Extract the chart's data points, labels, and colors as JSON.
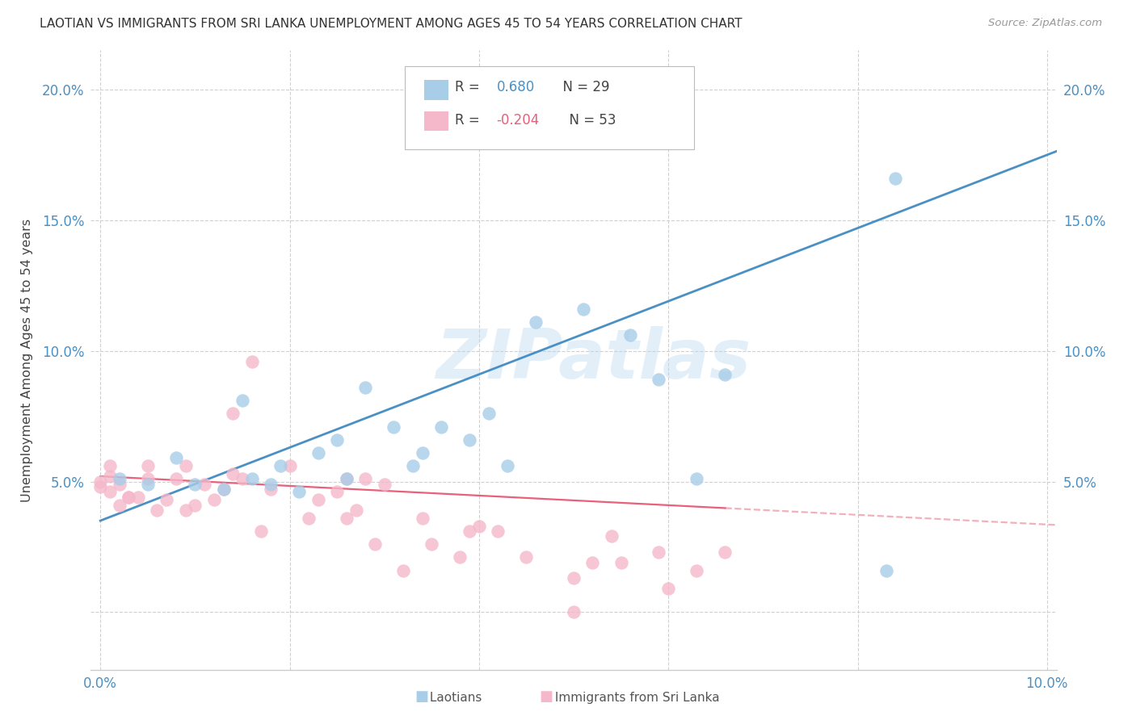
{
  "title": "LAOTIAN VS IMMIGRANTS FROM SRI LANKA UNEMPLOYMENT AMONG AGES 45 TO 54 YEARS CORRELATION CHART",
  "source": "Source: ZipAtlas.com",
  "ylabel": "Unemployment Among Ages 45 to 54 years",
  "xlim": [
    -0.001,
    0.101
  ],
  "ylim": [
    -0.022,
    0.215
  ],
  "blue_color": "#a8cde8",
  "pink_color": "#f5b8cb",
  "blue_line_color": "#4a90c4",
  "pink_line_color": "#e8607a",
  "watermark": "ZIPatlas",
  "legend_r_blue": "0.680",
  "legend_n_blue": "29",
  "legend_r_pink": "-0.204",
  "legend_n_pink": "53",
  "laotian_x": [
    0.002,
    0.005,
    0.008,
    0.01,
    0.013,
    0.015,
    0.016,
    0.018,
    0.019,
    0.021,
    0.023,
    0.025,
    0.026,
    0.028,
    0.031,
    0.033,
    0.034,
    0.036,
    0.039,
    0.041,
    0.043,
    0.046,
    0.051,
    0.056,
    0.059,
    0.063,
    0.066,
    0.083,
    0.084
  ],
  "laotian_y": [
    0.051,
    0.049,
    0.059,
    0.049,
    0.047,
    0.081,
    0.051,
    0.049,
    0.056,
    0.046,
    0.061,
    0.066,
    0.051,
    0.086,
    0.071,
    0.056,
    0.061,
    0.071,
    0.066,
    0.076,
    0.056,
    0.111,
    0.116,
    0.106,
    0.089,
    0.051,
    0.091,
    0.016,
    0.166
  ],
  "srilanka_x": [
    0.0,
    0.0,
    0.001,
    0.001,
    0.001,
    0.002,
    0.002,
    0.003,
    0.003,
    0.004,
    0.005,
    0.005,
    0.006,
    0.007,
    0.008,
    0.009,
    0.009,
    0.01,
    0.011,
    0.012,
    0.013,
    0.014,
    0.014,
    0.015,
    0.016,
    0.017,
    0.018,
    0.02,
    0.022,
    0.023,
    0.025,
    0.026,
    0.026,
    0.027,
    0.028,
    0.029,
    0.03,
    0.032,
    0.034,
    0.035,
    0.038,
    0.039,
    0.04,
    0.042,
    0.045,
    0.05,
    0.052,
    0.054,
    0.055,
    0.059,
    0.06,
    0.063,
    0.066
  ],
  "srilanka_y": [
    0.048,
    0.05,
    0.052,
    0.056,
    0.046,
    0.049,
    0.041,
    0.044,
    0.044,
    0.044,
    0.051,
    0.056,
    0.039,
    0.043,
    0.051,
    0.039,
    0.056,
    0.041,
    0.049,
    0.043,
    0.047,
    0.053,
    0.076,
    0.051,
    0.096,
    0.031,
    0.047,
    0.056,
    0.036,
    0.043,
    0.046,
    0.036,
    0.051,
    0.039,
    0.051,
    0.026,
    0.049,
    0.016,
    0.036,
    0.026,
    0.021,
    0.031,
    0.033,
    0.031,
    0.021,
    0.013,
    0.019,
    0.029,
    0.019,
    0.023,
    0.009,
    0.016,
    0.023
  ],
  "srilanka_outlier_x": [
    0.05
  ],
  "srilanka_outlier_y": [
    0.0
  ]
}
